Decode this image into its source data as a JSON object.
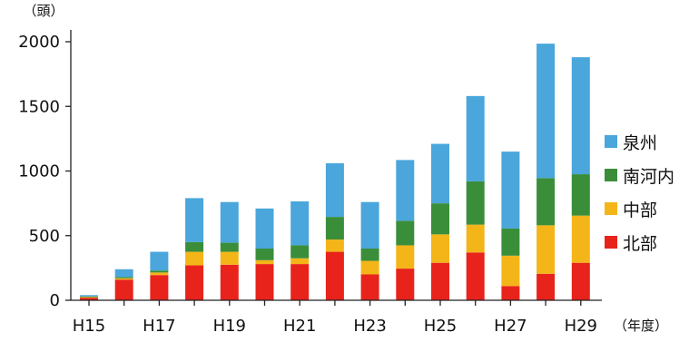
{
  "chart_data": {
    "type": "bar",
    "stacked": true,
    "ylabel": "（頭）",
    "xlabel": "（年度）",
    "ylim": [
      0,
      2100
    ],
    "yticks": [
      0,
      500,
      1000,
      1500,
      2000
    ],
    "categories": [
      "H15",
      "H16",
      "H17",
      "H18",
      "H19",
      "H20",
      "H21",
      "H22",
      "H23",
      "H24",
      "H25",
      "H26",
      "H27",
      "H28",
      "H29"
    ],
    "shown_tick_labels": [
      "H15",
      "H17",
      "H19",
      "H21",
      "H23",
      "H25",
      "H27",
      "H29"
    ],
    "legend_position": "right",
    "series": [
      {
        "name": "北部",
        "color": "#e8231c",
        "values": [
          20,
          160,
          195,
          270,
          275,
          280,
          280,
          375,
          200,
          245,
          290,
          370,
          110,
          205,
          290
        ]
      },
      {
        "name": "中部",
        "color": "#f4b519",
        "values": [
          5,
          10,
          20,
          105,
          100,
          30,
          45,
          95,
          105,
          180,
          220,
          215,
          235,
          375,
          365
        ]
      },
      {
        "name": "南河内",
        "color": "#3a8e3a",
        "values": [
          5,
          10,
          15,
          75,
          70,
          90,
          100,
          175,
          95,
          190,
          240,
          335,
          210,
          365,
          320
        ]
      },
      {
        "name": "泉州",
        "color": "#4aa6db",
        "values": [
          10,
          60,
          145,
          340,
          315,
          310,
          340,
          415,
          360,
          470,
          460,
          660,
          595,
          1040,
          905
        ]
      }
    ]
  }
}
